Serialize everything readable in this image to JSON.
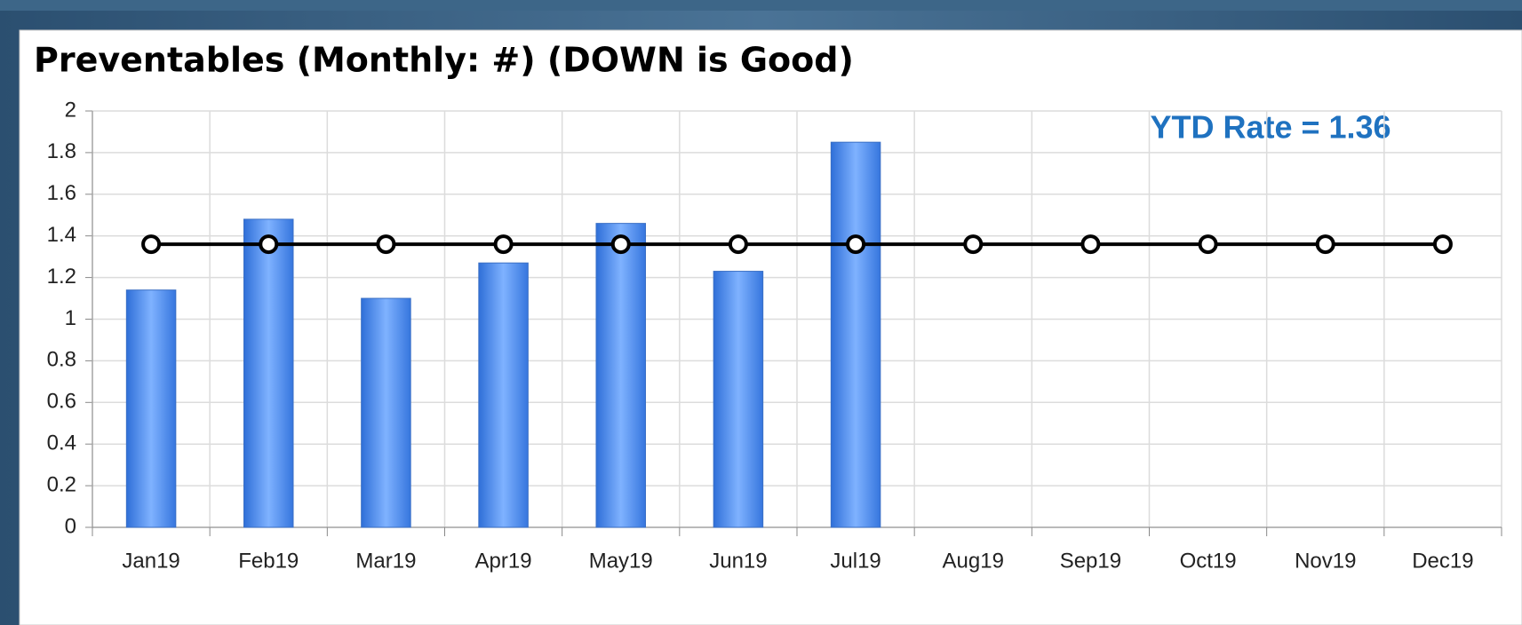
{
  "chart_data": {
    "type": "bar-line",
    "title": "Preventables (Monthly: #) (DOWN is Good)",
    "annotation": "YTD Rate = 1.36",
    "categories": [
      "Jan19",
      "Feb19",
      "Mar19",
      "Apr19",
      "May19",
      "Jun19",
      "Jul19",
      "Aug19",
      "Sep19",
      "Oct19",
      "Nov19",
      "Dec19"
    ],
    "series": [
      {
        "type": "bar",
        "color": "#4a8ef0",
        "values": [
          1.14,
          1.48,
          1.1,
          1.27,
          1.46,
          1.23,
          1.85,
          null,
          null,
          null,
          null,
          null
        ]
      },
      {
        "type": "line",
        "color": "#000000",
        "values": [
          1.36,
          1.36,
          1.36,
          1.36,
          1.36,
          1.36,
          1.36,
          1.36,
          1.36,
          1.36,
          1.36,
          1.36
        ]
      }
    ],
    "ylim": [
      0,
      2
    ],
    "yticks": [
      0,
      0.2,
      0.4,
      0.6,
      0.8,
      1,
      1.2,
      1.4,
      1.6,
      1.8,
      2
    ],
    "grid": true
  }
}
